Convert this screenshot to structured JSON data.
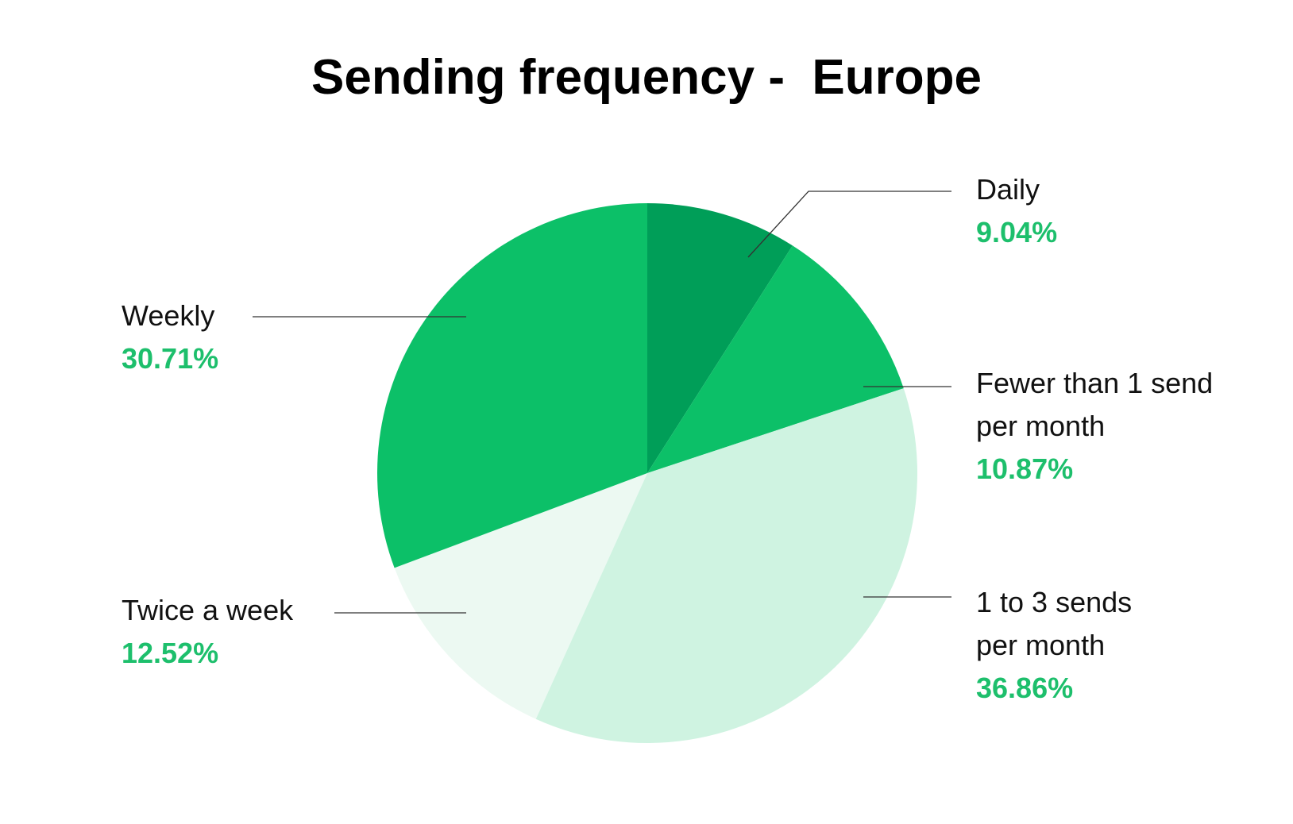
{
  "chart_data": {
    "type": "pie",
    "title": "Sending frequency -  Europe",
    "categories": [
      "Daily",
      "Fewer than 1 send per month",
      "1 to 3 sends per month",
      "Twice a week",
      "Weekly"
    ],
    "values": [
      9.04,
      10.87,
      36.86,
      12.52,
      30.71
    ],
    "value_labels": [
      "9.04%",
      "10.87%",
      "36.86%",
      "12.52%",
      "30.71%"
    ],
    "colors": [
      "#009e58",
      "#0cc068",
      "#cff3e1",
      "#ecf9f2",
      "#0cc068"
    ]
  }
}
